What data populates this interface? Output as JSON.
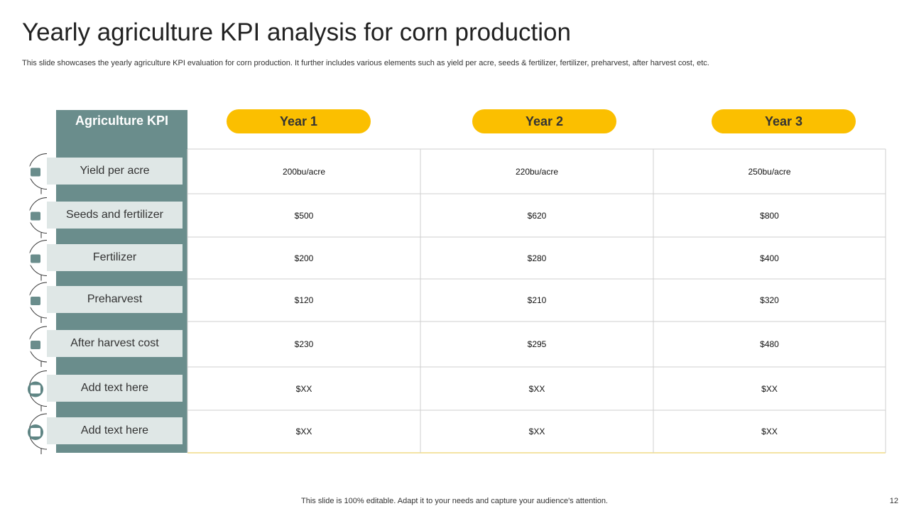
{
  "header": {
    "title": "Yearly agriculture KPI analysis for corn production",
    "subtitle": "This slide showcases the yearly agriculture KPI evaluation for corn production. It further includes various elements such as yield per acre, seeds & fertilizer, fertilizer, preharvest, after harvest cost, etc."
  },
  "table": {
    "header": [
      "Agriculture KPI",
      "Year 1",
      "Year 2",
      "Year 3"
    ],
    "rows": [
      [
        "Yield per acre",
        "200bu/acre",
        "220bu/acre",
        "250bu/acre"
      ],
      [
        "Seeds and fertilizer",
        "$500",
        "$620",
        "$800"
      ],
      [
        "Fertilizer",
        "$200",
        "$280",
        "$400"
      ],
      [
        "Preharvest",
        "$120",
        "$210",
        "$320"
      ],
      [
        "After harvest cost",
        "$230",
        "$295",
        "$480"
      ],
      [
        "Add text here",
        "$XX",
        "$XX",
        "$XX"
      ],
      [
        "Add text here",
        "$XX",
        "$XX",
        "$XX"
      ]
    ]
  },
  "footer": {
    "note": "This slide is 100% editable. Adapt it to your needs and capture your audience's attention.",
    "page_number": "12"
  }
}
